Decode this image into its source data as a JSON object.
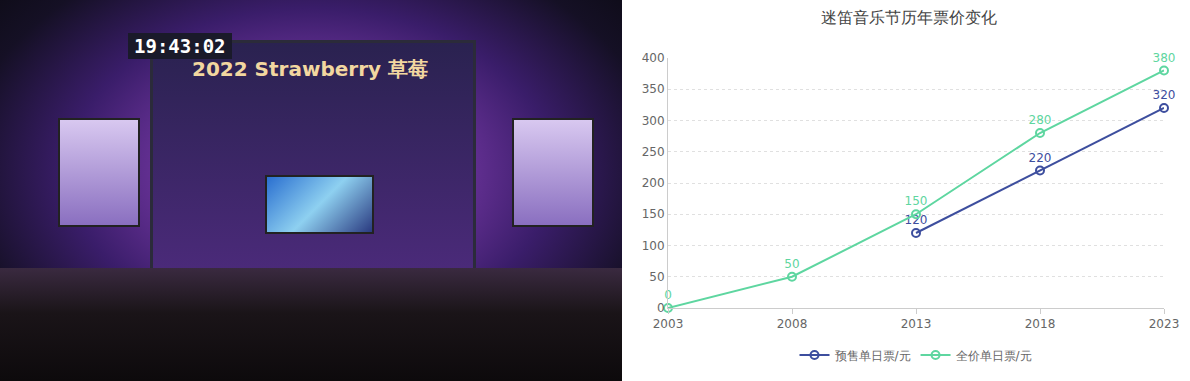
{
  "photo": {
    "clock": "19:43:02",
    "banner": "2022 Strawberry 草莓"
  },
  "chart_data": {
    "type": "line",
    "title": "迷笛音乐节历年票价变化",
    "x": [
      2003,
      2008,
      2013,
      2018,
      2023
    ],
    "series": [
      {
        "name": "预售单日票/元",
        "color": "#3d4e9e",
        "marker": "circle",
        "values": [
          null,
          null,
          120,
          220,
          320
        ]
      },
      {
        "name": "全价单日票/元",
        "color": "#5ed6a0",
        "marker": "circle",
        "values": [
          0,
          50,
          150,
          280,
          380
        ]
      }
    ],
    "xlim": [
      2003,
      2023
    ],
    "xticks": [
      2003,
      2008,
      2013,
      2018,
      2023
    ],
    "ylim": [
      0,
      400
    ],
    "yticks": [
      0,
      50,
      100,
      150,
      200,
      250,
      300,
      350,
      400
    ],
    "grid": true,
    "legend": "bottom",
    "data_labels": true
  }
}
